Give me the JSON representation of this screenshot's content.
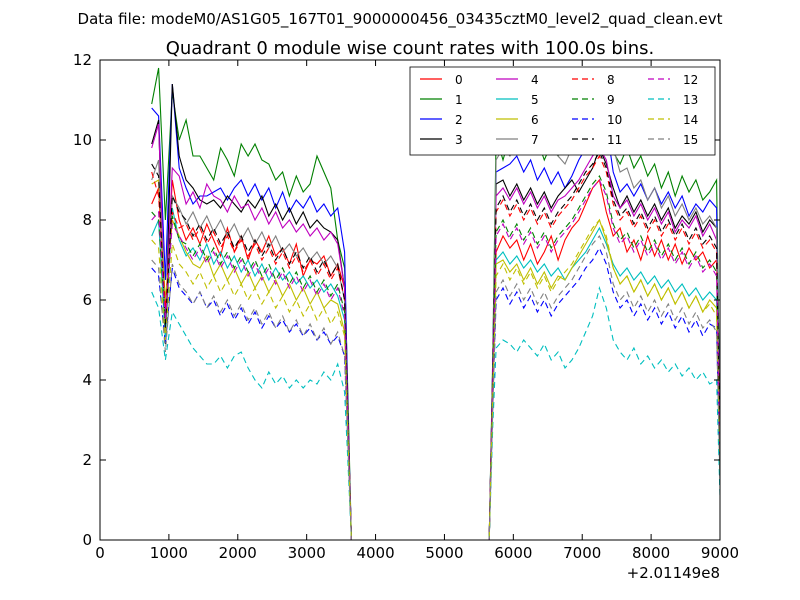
{
  "chart_data": {
    "type": "line",
    "suptitle": "Data file: modeM0/AS1G05_167T01_9000000456_03435cztM0_level2_quad_clean.evt",
    "title": "Quadrant 0 module wise count rates with 100.0s bins.",
    "xlabel": "",
    "ylabel": "",
    "x_offset_label": "+2.01149e8",
    "xlim": [
      0,
      9000
    ],
    "ylim": [
      0,
      12
    ],
    "xticks": [
      0,
      1000,
      2000,
      3000,
      4000,
      5000,
      6000,
      7000,
      8000,
      9000
    ],
    "yticks": [
      0,
      2,
      4,
      6,
      8,
      10,
      12
    ],
    "grid": false,
    "legend": {
      "placement": "top-right",
      "columns": 4
    },
    "x": [
      750,
      850,
      950,
      1050,
      1150,
      1250,
      1350,
      1450,
      1550,
      1650,
      1750,
      1850,
      1950,
      2050,
      2150,
      2250,
      2350,
      2450,
      2550,
      2650,
      2750,
      2850,
      2950,
      3050,
      3150,
      3250,
      3350,
      3450,
      3550,
      3600,
      3650,
      3700,
      5650,
      5700,
      5750,
      5850,
      5950,
      6050,
      6150,
      6250,
      6350,
      6450,
      6550,
      6650,
      6750,
      6850,
      6950,
      7050,
      7150,
      7250,
      7350,
      7450,
      7550,
      7650,
      7750,
      7850,
      7950,
      8050,
      8150,
      8250,
      8350,
      8450,
      8550,
      8650,
      8750,
      8850,
      8950,
      9000
    ],
    "series": [
      {
        "name": "0",
        "color": "#ff0000",
        "dash": "solid",
        "values": [
          8.4,
          8.8,
          5.6,
          9.0,
          8.0,
          7.5,
          7.8,
          7.4,
          7.9,
          7.5,
          7.1,
          7.8,
          7.2,
          7.6,
          7.0,
          7.5,
          7.2,
          7.6,
          7.1,
          7.3,
          6.9,
          7.4,
          6.6,
          7.0,
          6.9,
          7.1,
          6.6,
          6.9,
          6.3,
          3.0,
          0,
          0,
          0,
          4.0,
          7.2,
          7.6,
          7.3,
          7.5,
          7.0,
          7.4,
          6.9,
          7.2,
          7.6,
          7.0,
          7.5,
          7.8,
          8.0,
          8.4,
          8.8,
          9.0,
          8.2,
          7.6,
          7.8,
          7.2,
          7.5,
          7.0,
          7.6,
          7.1,
          7.5,
          7.0,
          7.4,
          6.9,
          7.3,
          7.0,
          7.2,
          6.8,
          7.0,
          2.2
        ]
      },
      {
        "name": "1",
        "color": "#008000",
        "dash": "solid",
        "values": [
          10.9,
          11.8,
          8.0,
          11.2,
          10.0,
          10.5,
          9.6,
          9.6,
          9.3,
          9.0,
          9.8,
          9.5,
          9.1,
          9.9,
          9.6,
          9.9,
          9.5,
          9.4,
          9.0,
          9.2,
          8.6,
          9.1,
          8.7,
          8.9,
          9.6,
          9.2,
          8.8,
          7.5,
          6.8,
          3.5,
          0,
          0,
          0,
          4.5,
          10.1,
          9.5,
          10.1,
          9.8,
          9.9,
          10.2,
          10.0,
          9.5,
          9.9,
          9.6,
          10.3,
          9.8,
          10.2,
          10.5,
          10.8,
          10.7,
          10.4,
          9.7,
          9.4,
          9.8,
          9.3,
          9.6,
          9.1,
          9.4,
          8.8,
          9.2,
          8.6,
          9.1,
          8.7,
          9.0,
          8.5,
          8.7,
          9.0,
          2.8
        ]
      },
      {
        "name": "2",
        "color": "#0000ff",
        "dash": "solid",
        "values": [
          10.8,
          10.6,
          6.5,
          11.4,
          9.3,
          8.8,
          8.4,
          8.6,
          8.6,
          8.7,
          8.8,
          8.5,
          8.8,
          9.0,
          8.6,
          8.9,
          8.5,
          8.8,
          8.3,
          8.7,
          8.2,
          8.5,
          8.3,
          8.6,
          8.2,
          8.4,
          8.1,
          8.3,
          7.2,
          3.2,
          0,
          0,
          0,
          4.3,
          9.2,
          9.3,
          9.4,
          9.6,
          9.2,
          9.5,
          9.0,
          9.3,
          8.9,
          9.2,
          8.8,
          9.1,
          9.5,
          9.8,
          10.2,
          10.6,
          10.4,
          9.2,
          8.7,
          8.9,
          8.6,
          8.9,
          8.5,
          8.8,
          8.4,
          8.7,
          8.3,
          8.6,
          8.1,
          8.4,
          8.2,
          8.5,
          8.3,
          2.5
        ]
      },
      {
        "name": "3",
        "color": "#000000",
        "dash": "solid",
        "values": [
          9.9,
          10.5,
          4.9,
          11.4,
          9.6,
          9.0,
          8.8,
          8.5,
          8.4,
          8.5,
          8.3,
          8.6,
          8.4,
          8.2,
          8.5,
          8.3,
          8.6,
          8.1,
          8.4,
          8.0,
          8.3,
          7.9,
          8.2,
          7.8,
          8.0,
          7.8,
          7.7,
          7.5,
          6.3,
          3.0,
          0,
          0,
          0,
          4.2,
          8.9,
          9.0,
          8.6,
          8.9,
          8.5,
          8.8,
          8.4,
          8.7,
          8.3,
          8.6,
          8.8,
          9.0,
          8.7,
          9.0,
          9.3,
          9.8,
          9.4,
          8.8,
          8.3,
          8.6,
          8.2,
          8.5,
          8.1,
          8.4,
          8.0,
          8.3,
          7.8,
          8.1,
          7.9,
          8.2,
          7.7,
          8.0,
          7.8,
          2.2
        ]
      },
      {
        "name": "4",
        "color": "#bf00bf",
        "dash": "solid",
        "values": [
          9.8,
          10.4,
          5.5,
          9.3,
          9.1,
          8.4,
          8.7,
          8.3,
          8.9,
          8.6,
          8.5,
          8.2,
          8.6,
          8.3,
          8.4,
          8.0,
          8.3,
          7.9,
          8.2,
          7.8,
          8.0,
          7.7,
          7.9,
          7.6,
          7.8,
          7.5,
          7.7,
          7.4,
          6.3,
          3.0,
          0,
          0,
          0,
          4.0,
          8.6,
          8.8,
          8.5,
          8.8,
          8.4,
          8.7,
          8.3,
          8.6,
          8.2,
          8.5,
          8.6,
          8.8,
          9.0,
          9.3,
          9.6,
          9.8,
          9.5,
          8.6,
          8.3,
          8.5,
          8.1,
          8.4,
          8.0,
          8.3,
          7.9,
          8.2,
          7.7,
          8.0,
          7.8,
          8.1,
          7.6,
          7.9,
          7.5,
          2.4
        ]
      },
      {
        "name": "5",
        "color": "#00bfbf",
        "dash": "solid",
        "values": [
          7.6,
          8.0,
          5.0,
          8.3,
          7.5,
          7.1,
          7.3,
          7.0,
          7.4,
          6.9,
          7.2,
          6.8,
          7.1,
          6.7,
          7.0,
          6.6,
          6.9,
          6.5,
          6.8,
          6.5,
          6.7,
          6.4,
          6.6,
          6.3,
          6.5,
          6.2,
          6.4,
          6.1,
          5.5,
          2.8,
          0,
          0,
          0,
          3.8,
          7.0,
          7.2,
          6.9,
          7.1,
          6.8,
          7.0,
          6.7,
          6.9,
          6.6,
          6.8,
          6.5,
          6.8,
          7.0,
          7.2,
          7.5,
          7.8,
          7.4,
          6.9,
          6.6,
          6.8,
          6.5,
          6.7,
          6.4,
          6.6,
          6.3,
          6.5,
          6.2,
          6.4,
          6.1,
          6.3,
          6.0,
          6.2,
          6.0,
          1.8
        ]
      },
      {
        "name": "6",
        "color": "#bfbf00",
        "dash": "solid",
        "values": [
          8.9,
          9.0,
          6.0,
          8.0,
          7.6,
          7.2,
          6.9,
          6.8,
          7.1,
          6.6,
          6.9,
          6.5,
          6.8,
          6.4,
          6.7,
          6.3,
          6.6,
          6.2,
          6.5,
          6.1,
          6.4,
          6.0,
          6.3,
          5.9,
          6.2,
          5.8,
          6.0,
          5.9,
          5.2,
          2.6,
          0,
          0,
          0,
          3.6,
          6.9,
          7.0,
          6.7,
          6.9,
          6.5,
          6.8,
          6.4,
          6.7,
          6.3,
          6.6,
          6.5,
          6.8,
          7.1,
          7.4,
          7.7,
          8.0,
          7.5,
          6.8,
          6.4,
          6.6,
          6.2,
          6.5,
          6.1,
          6.4,
          6.0,
          6.3,
          5.9,
          6.2,
          5.8,
          6.1,
          5.7,
          6.0,
          5.8,
          1.6
        ]
      },
      {
        "name": "7",
        "color": "#808080",
        "dash": "solid",
        "values": [
          9.0,
          9.5,
          5.2,
          8.6,
          8.3,
          7.9,
          8.2,
          7.8,
          8.1,
          7.7,
          8.0,
          7.6,
          7.9,
          7.5,
          7.8,
          7.4,
          7.7,
          7.3,
          7.6,
          7.2,
          7.4,
          7.1,
          7.3,
          7.0,
          7.2,
          6.9,
          7.1,
          6.8,
          6.0,
          2.9,
          0,
          0,
          0,
          4.2,
          9.5,
          9.8,
          9.6,
          9.9,
          9.7,
          10.1,
          10.0,
          10.2,
          9.8,
          9.6,
          9.4,
          9.8,
          10.2,
          10.6,
          11.0,
          11.2,
          10.8,
          9.8,
          9.2,
          9.3,
          8.8,
          9.0,
          8.5,
          8.8,
          8.3,
          8.6,
          8.1,
          8.4,
          8.0,
          8.3,
          7.9,
          8.1,
          7.8,
          2.6
        ]
      },
      {
        "name": "8",
        "color": "#ff0000",
        "dash": "dashed",
        "values": [
          9.2,
          8.6,
          5.8,
          8.2,
          7.8,
          7.9,
          7.5,
          7.8,
          7.4,
          7.7,
          7.3,
          7.6,
          7.2,
          7.5,
          7.1,
          7.4,
          7.0,
          7.3,
          6.9,
          7.2,
          6.8,
          7.1,
          6.7,
          7.0,
          6.6,
          6.9,
          6.5,
          6.8,
          6.0,
          3.0,
          0,
          0,
          0,
          4.1,
          8.2,
          8.5,
          8.1,
          8.4,
          8.0,
          8.3,
          7.9,
          8.2,
          7.8,
          8.1,
          8.3,
          8.5,
          8.8,
          9.1,
          9.3,
          9.6,
          9.2,
          8.4,
          8.0,
          8.2,
          7.8,
          8.1,
          7.7,
          8.0,
          7.6,
          7.9,
          7.5,
          7.8,
          7.4,
          7.7,
          7.3,
          7.5,
          7.2,
          2.3
        ]
      },
      {
        "name": "9",
        "color": "#008000",
        "dash": "dashed",
        "values": [
          8.2,
          8.0,
          5.4,
          8.1,
          7.5,
          7.4,
          7.1,
          7.4,
          7.0,
          7.3,
          6.9,
          7.2,
          6.8,
          7.1,
          6.7,
          7.0,
          6.6,
          6.9,
          6.5,
          6.8,
          6.4,
          6.7,
          6.3,
          6.6,
          6.2,
          6.5,
          6.1,
          6.4,
          5.7,
          2.8,
          0,
          0,
          0,
          3.9,
          7.7,
          8.0,
          7.6,
          7.9,
          7.5,
          7.8,
          7.4,
          7.7,
          7.3,
          7.6,
          7.8,
          8.0,
          8.3,
          8.6,
          8.9,
          9.1,
          8.7,
          7.9,
          7.5,
          7.7,
          7.3,
          7.6,
          7.2,
          7.5,
          7.1,
          7.4,
          7.0,
          7.3,
          6.9,
          7.2,
          6.8,
          7.0,
          6.7,
          2.0
        ]
      },
      {
        "name": "10",
        "color": "#0000ff",
        "dash": "dashed",
        "values": [
          6.8,
          6.6,
          4.9,
          6.8,
          6.3,
          6.1,
          5.9,
          6.2,
          5.8,
          6.0,
          5.6,
          5.9,
          5.5,
          5.8,
          5.4,
          5.7,
          5.3,
          5.6,
          5.3,
          5.5,
          5.2,
          5.4,
          5.1,
          5.3,
          5.0,
          5.2,
          4.9,
          5.1,
          4.6,
          2.3,
          0,
          0,
          0,
          3.2,
          6.0,
          6.3,
          5.9,
          6.2,
          5.8,
          6.1,
          5.7,
          6.0,
          5.6,
          5.9,
          6.1,
          6.3,
          6.5,
          6.8,
          7.0,
          7.3,
          6.9,
          6.2,
          5.8,
          6.0,
          5.6,
          5.9,
          5.5,
          5.8,
          5.4,
          5.7,
          5.3,
          5.6,
          5.2,
          5.5,
          5.1,
          5.4,
          5.3,
          1.5
        ]
      },
      {
        "name": "11",
        "color": "#000000",
        "dash": "dashed",
        "values": [
          9.4,
          9.1,
          5.3,
          8.6,
          8.2,
          8.0,
          7.6,
          7.9,
          7.5,
          7.8,
          7.4,
          7.7,
          7.3,
          7.6,
          7.2,
          7.5,
          7.1,
          7.4,
          7.0,
          7.3,
          6.9,
          7.2,
          6.8,
          7.1,
          6.7,
          7.0,
          6.6,
          6.9,
          6.0,
          3.0,
          0,
          0,
          0,
          4.1,
          8.3,
          8.6,
          8.2,
          8.5,
          8.1,
          8.4,
          8.0,
          8.3,
          7.9,
          8.2,
          8.4,
          8.6,
          8.9,
          9.2,
          9.4,
          9.7,
          9.3,
          8.5,
          8.1,
          8.3,
          7.9,
          8.2,
          7.8,
          8.1,
          7.7,
          8.0,
          7.6,
          7.9,
          7.5,
          7.8,
          7.4,
          7.6,
          7.3,
          2.2
        ]
      },
      {
        "name": "12",
        "color": "#bf00bf",
        "dash": "dashed",
        "values": [
          8.0,
          8.2,
          5.5,
          7.9,
          7.6,
          7.3,
          7.0,
          7.3,
          6.9,
          7.2,
          6.8,
          7.1,
          6.7,
          7.0,
          6.6,
          6.9,
          6.5,
          6.8,
          6.4,
          6.7,
          6.3,
          6.6,
          6.2,
          6.5,
          6.1,
          6.4,
          6.0,
          6.3,
          5.6,
          2.8,
          0,
          0,
          0,
          3.9,
          7.6,
          7.9,
          7.5,
          7.8,
          7.4,
          7.7,
          7.3,
          7.6,
          7.2,
          7.5,
          7.7,
          7.9,
          8.2,
          8.5,
          8.8,
          9.0,
          8.6,
          7.8,
          7.4,
          7.6,
          7.2,
          7.5,
          7.1,
          7.4,
          7.0,
          7.3,
          6.9,
          7.2,
          6.8,
          7.1,
          6.7,
          6.9,
          6.6,
          2.0
        ]
      },
      {
        "name": "13",
        "color": "#00bfbf",
        "dash": "dashed",
        "values": [
          6.2,
          5.8,
          4.5,
          5.7,
          5.4,
          5.1,
          4.8,
          4.6,
          4.4,
          4.4,
          4.6,
          4.3,
          4.6,
          4.7,
          4.3,
          4.0,
          3.8,
          4.2,
          3.9,
          4.1,
          3.8,
          4.0,
          3.8,
          4.0,
          3.9,
          4.2,
          4.0,
          4.4,
          3.7,
          1.9,
          0,
          0,
          0,
          2.8,
          4.8,
          5.0,
          4.9,
          4.7,
          5.0,
          4.8,
          4.6,
          4.9,
          4.5,
          4.7,
          4.3,
          4.5,
          4.8,
          5.2,
          5.6,
          6.3,
          5.8,
          5.0,
          4.7,
          4.5,
          4.8,
          4.4,
          4.6,
          4.3,
          4.5,
          4.2,
          4.4,
          4.1,
          4.3,
          4.0,
          4.2,
          3.9,
          4.0,
          1.1
        ]
      },
      {
        "name": "14",
        "color": "#bfbf00",
        "dash": "dashed",
        "values": [
          7.5,
          7.3,
          5.0,
          7.4,
          6.9,
          6.7,
          6.4,
          6.7,
          6.3,
          6.6,
          6.2,
          6.5,
          6.1,
          6.4,
          6.0,
          6.3,
          5.9,
          6.2,
          5.8,
          6.1,
          5.7,
          6.0,
          5.6,
          5.9,
          5.5,
          5.8,
          5.4,
          5.7,
          5.1,
          2.5,
          0,
          0,
          0,
          3.5,
          6.6,
          6.9,
          6.5,
          6.8,
          6.4,
          6.7,
          6.3,
          6.6,
          6.2,
          6.5,
          6.7,
          6.9,
          7.2,
          7.5,
          7.8,
          8.0,
          7.6,
          6.8,
          6.4,
          6.6,
          6.2,
          6.5,
          6.1,
          6.4,
          6.0,
          6.3,
          5.9,
          6.2,
          5.8,
          6.1,
          5.7,
          5.9,
          5.6,
          1.7
        ]
      },
      {
        "name": "15",
        "color": "#808080",
        "dash": "dashed",
        "values": [
          7.0,
          6.8,
          4.7,
          6.9,
          6.4,
          6.2,
          5.9,
          6.2,
          5.8,
          6.1,
          5.7,
          6.0,
          5.6,
          5.9,
          5.5,
          5.8,
          5.4,
          5.7,
          5.3,
          5.6,
          5.2,
          5.5,
          5.1,
          5.4,
          5.0,
          5.3,
          4.9,
          5.2,
          4.6,
          2.3,
          0,
          0,
          0,
          3.2,
          6.2,
          6.5,
          6.1,
          6.4,
          6.0,
          6.3,
          5.9,
          6.2,
          5.8,
          6.1,
          6.3,
          6.5,
          6.8,
          7.1,
          7.4,
          7.6,
          7.2,
          6.4,
          6.0,
          6.2,
          5.8,
          6.1,
          5.7,
          6.0,
          5.6,
          5.9,
          5.5,
          5.8,
          5.4,
          5.7,
          5.3,
          5.5,
          5.2,
          1.4
        ]
      }
    ]
  }
}
